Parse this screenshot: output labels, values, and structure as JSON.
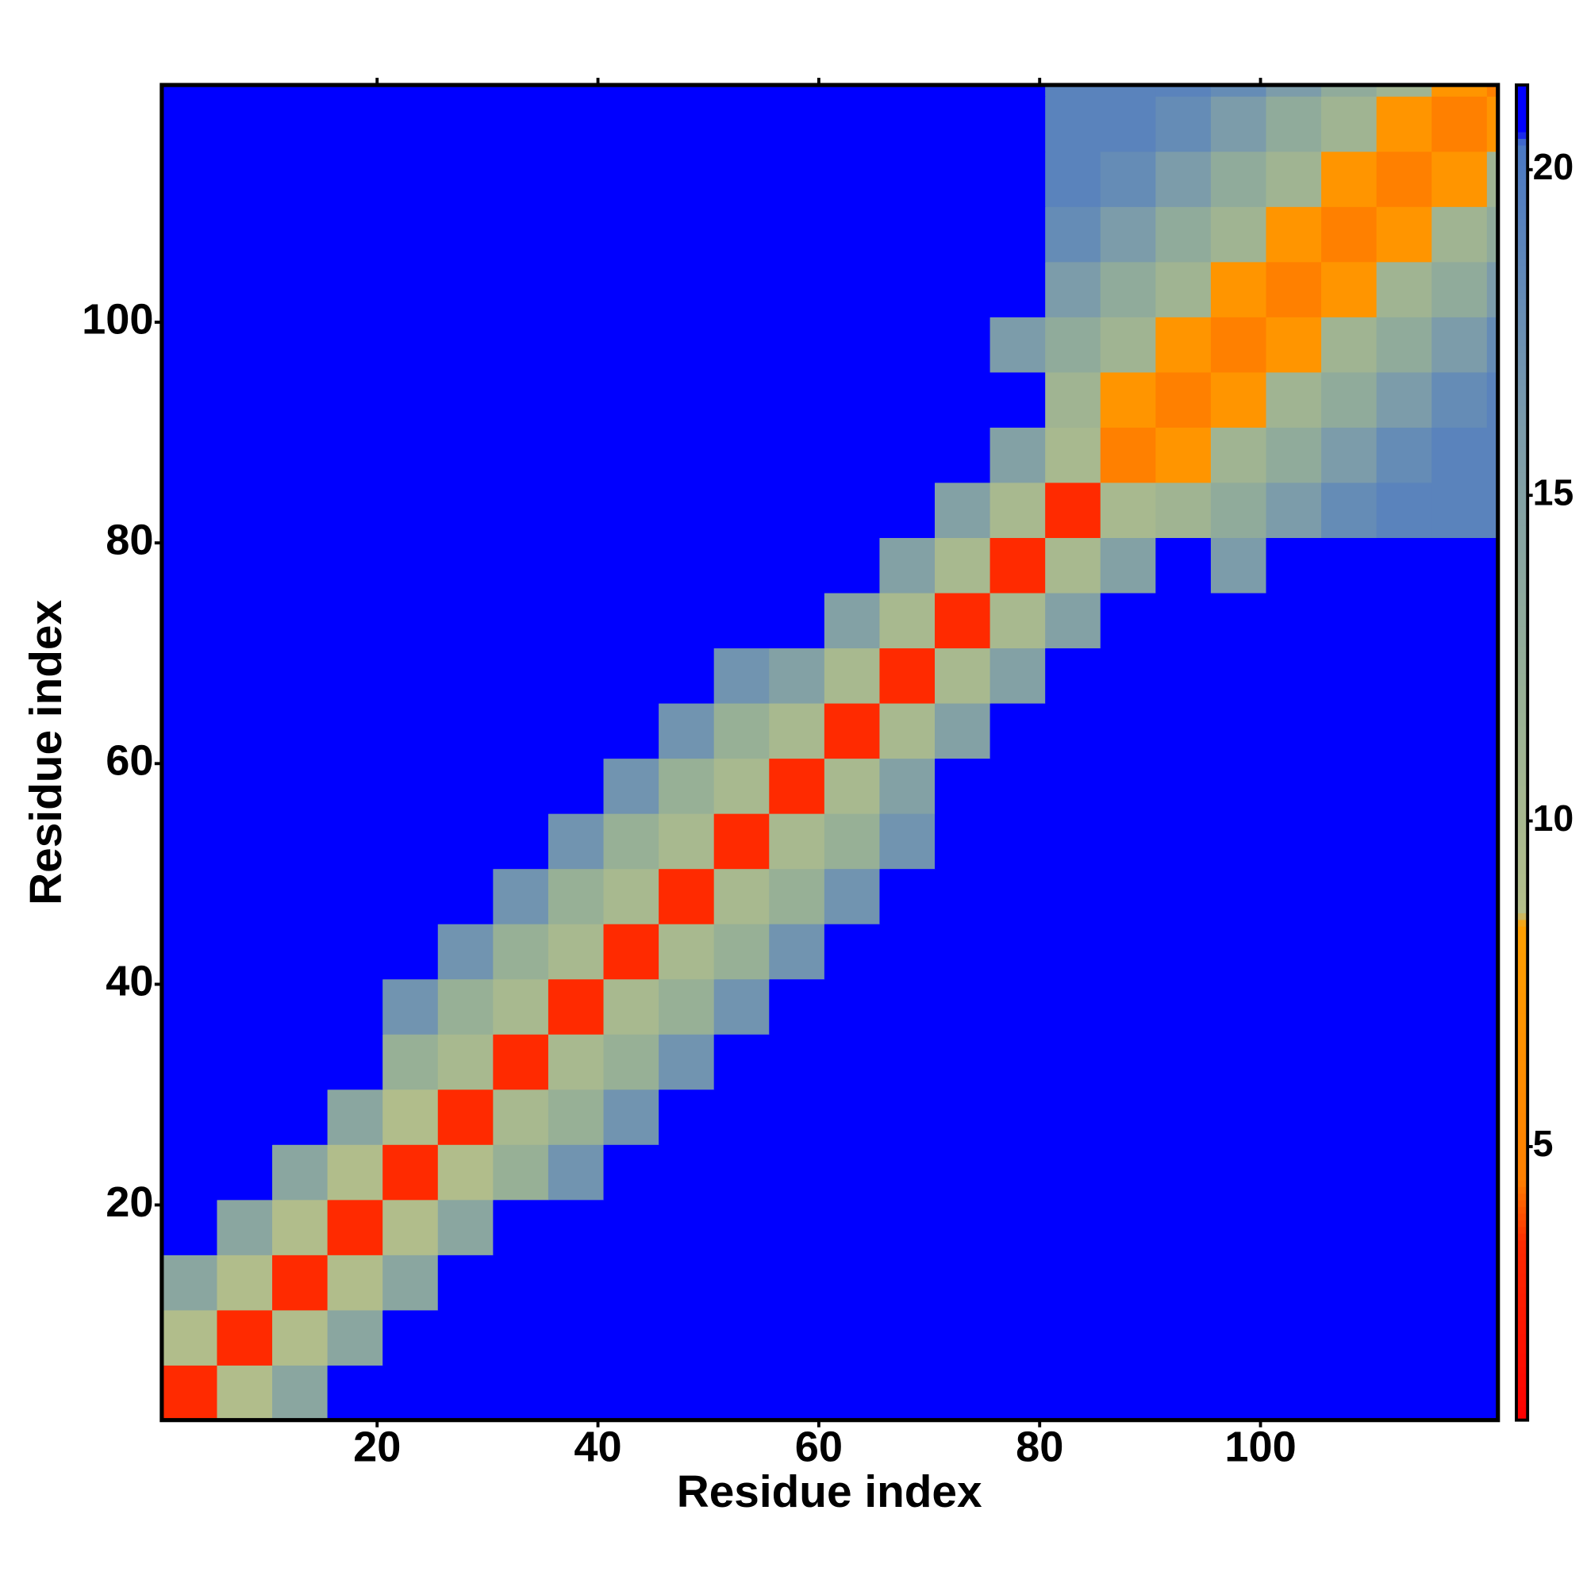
{
  "chart_data": {
    "type": "heatmap",
    "x_label": "Residue index",
    "y_label": "Residue index",
    "xlim": [
      0.5,
      121.5
    ],
    "ylim": [
      0.5,
      121.5
    ],
    "xticks": [
      20,
      40,
      60,
      80,
      100
    ],
    "yticks": [
      20,
      40,
      60,
      80,
      100
    ],
    "xbins": [
      0.5,
      5.5,
      10.5,
      15.5,
      20.5,
      25.5,
      30.5,
      35.5,
      40.5,
      45.5,
      50.5,
      55.5,
      60.5,
      65.5,
      70.5,
      75.5,
      80.5,
      85.5,
      90.5,
      95.5,
      100.5,
      105.5,
      110.5,
      115.5,
      120.5,
      121.5
    ],
    "ybins": [
      0.5,
      5.5,
      10.5,
      15.5,
      20.5,
      25.5,
      30.5,
      35.5,
      40.5,
      45.5,
      50.5,
      55.5,
      60.5,
      65.5,
      70.5,
      75.5,
      80.5,
      85.5,
      90.5,
      95.5,
      100.5,
      105.5,
      110.5,
      115.5,
      120.5,
      121.5
    ],
    "zlim": [
      0.8,
      21.3
    ],
    "zticks": [
      5,
      10,
      15,
      20
    ],
    "colorscale": [
      [
        0.8,
        "#ff0000"
      ],
      [
        3.5,
        "#ff2a00"
      ],
      [
        4.5,
        "#ff8000"
      ],
      [
        8.4,
        "#ffa000"
      ],
      [
        8.6,
        "#b4bf8a"
      ],
      [
        12,
        "#97b096"
      ],
      [
        16,
        "#7c9caa"
      ],
      [
        20.4,
        "#4a78c4"
      ],
      [
        20.6,
        "#0000ff"
      ],
      [
        21.3,
        "#0000ff"
      ]
    ],
    "z": [
      [
        3.5,
        9,
        14,
        21,
        21,
        21,
        21,
        21,
        21,
        21,
        21,
        21,
        21,
        21,
        21,
        21,
        21,
        21,
        21,
        21,
        21,
        21,
        21,
        21,
        21
      ],
      [
        9,
        3.5,
        9,
        14,
        21,
        21,
        21,
        21,
        21,
        21,
        21,
        21,
        21,
        21,
        21,
        21,
        21,
        21,
        21,
        21,
        21,
        21,
        21,
        21,
        21
      ],
      [
        14,
        9,
        3.5,
        9,
        14,
        21,
        21,
        21,
        21,
        21,
        21,
        21,
        21,
        21,
        21,
        21,
        21,
        21,
        21,
        21,
        21,
        21,
        21,
        21,
        21
      ],
      [
        21,
        14,
        9,
        3.5,
        9,
        14,
        21,
        21,
        21,
        21,
        21,
        21,
        21,
        21,
        21,
        21,
        21,
        21,
        21,
        21,
        21,
        21,
        21,
        21,
        21
      ],
      [
        21,
        21,
        14,
        9,
        3.5,
        9,
        12,
        17,
        21,
        21,
        21,
        21,
        21,
        21,
        21,
        21,
        21,
        21,
        21,
        21,
        21,
        21,
        21,
        21,
        21
      ],
      [
        21,
        21,
        21,
        14,
        9,
        3.5,
        10,
        12,
        17,
        21,
        21,
        21,
        21,
        21,
        21,
        21,
        21,
        21,
        21,
        21,
        21,
        21,
        21,
        21,
        21
      ],
      [
        21,
        21,
        21,
        21,
        12,
        10,
        3.5,
        10,
        12,
        17,
        21,
        21,
        21,
        21,
        21,
        21,
        21,
        21,
        21,
        21,
        21,
        21,
        21,
        21,
        21
      ],
      [
        21,
        21,
        21,
        21,
        17,
        12,
        10,
        3.5,
        10,
        12,
        17,
        21,
        21,
        21,
        21,
        21,
        21,
        21,
        21,
        21,
        21,
        21,
        21,
        21,
        21
      ],
      [
        21,
        21,
        21,
        21,
        21,
        17,
        12,
        10,
        3.5,
        10,
        12,
        17,
        21,
        21,
        21,
        21,
        21,
        21,
        21,
        21,
        21,
        21,
        21,
        21,
        21
      ],
      [
        21,
        21,
        21,
        21,
        21,
        21,
        17,
        12,
        10,
        3.5,
        10,
        12,
        17,
        21,
        21,
        21,
        21,
        21,
        21,
        21,
        21,
        21,
        21,
        21,
        21
      ],
      [
        21,
        21,
        21,
        21,
        21,
        21,
        21,
        17,
        12,
        10,
        3.5,
        10,
        12,
        17,
        21,
        21,
        21,
        21,
        21,
        21,
        21,
        21,
        21,
        21,
        21
      ],
      [
        21,
        21,
        21,
        21,
        21,
        21,
        21,
        21,
        17,
        12,
        10,
        3.5,
        10,
        15,
        21,
        21,
        21,
        21,
        21,
        21,
        21,
        21,
        21,
        21,
        21
      ],
      [
        21,
        21,
        21,
        21,
        21,
        21,
        21,
        21,
        21,
        17,
        12,
        10,
        3.5,
        10,
        15,
        21,
        21,
        21,
        21,
        21,
        21,
        21,
        21,
        21,
        21
      ],
      [
        21,
        21,
        21,
        21,
        21,
        21,
        21,
        21,
        21,
        21,
        17,
        15,
        10,
        3.5,
        10,
        15,
        21,
        21,
        21,
        21,
        21,
        21,
        21,
        21,
        21
      ],
      [
        21,
        21,
        21,
        21,
        21,
        21,
        21,
        21,
        21,
        21,
        21,
        21,
        15,
        10,
        3.5,
        10,
        15,
        21,
        21,
        21,
        21,
        21,
        21,
        21,
        21
      ],
      [
        21,
        21,
        21,
        21,
        21,
        21,
        21,
        21,
        21,
        21,
        21,
        21,
        21,
        15,
        10,
        3.5,
        10,
        15,
        21,
        16,
        21,
        21,
        21,
        21,
        21
      ],
      [
        21,
        21,
        21,
        21,
        21,
        21,
        21,
        21,
        21,
        21,
        21,
        21,
        21,
        21,
        15,
        10,
        3.5,
        10,
        11,
        13,
        16,
        18,
        19,
        19,
        19
      ],
      [
        21,
        21,
        21,
        21,
        21,
        21,
        21,
        21,
        21,
        21,
        21,
        21,
        21,
        21,
        21,
        15,
        10,
        4.5,
        7,
        11,
        13,
        16,
        18,
        19,
        19
      ],
      [
        21,
        21,
        21,
        21,
        21,
        21,
        21,
        21,
        21,
        21,
        21,
        21,
        21,
        21,
        21,
        21,
        11,
        7,
        4.5,
        7,
        11,
        13,
        16,
        18,
        19
      ],
      [
        21,
        21,
        21,
        21,
        21,
        21,
        21,
        21,
        21,
        21,
        21,
        21,
        21,
        21,
        21,
        16,
        13,
        11,
        7,
        4.5,
        7,
        11,
        13,
        16,
        18
      ],
      [
        21,
        21,
        21,
        21,
        21,
        21,
        21,
        21,
        21,
        21,
        21,
        21,
        21,
        21,
        21,
        21,
        16,
        13,
        11,
        7,
        4.5,
        7,
        11,
        13,
        16
      ],
      [
        21,
        21,
        21,
        21,
        21,
        21,
        21,
        21,
        21,
        21,
        21,
        21,
        21,
        21,
        21,
        21,
        18,
        16,
        13,
        11,
        7,
        4.5,
        7,
        11,
        13
      ],
      [
        21,
        21,
        21,
        21,
        21,
        21,
        21,
        21,
        21,
        21,
        21,
        21,
        21,
        21,
        21,
        21,
        19,
        18,
        16,
        13,
        11,
        7,
        4.5,
        7,
        11
      ],
      [
        21,
        21,
        21,
        21,
        21,
        21,
        21,
        21,
        21,
        21,
        21,
        21,
        21,
        21,
        21,
        21,
        19,
        19,
        18,
        16,
        13,
        11,
        7,
        4.5,
        7
      ],
      [
        21,
        21,
        21,
        21,
        21,
        21,
        21,
        21,
        21,
        21,
        21,
        21,
        21,
        21,
        21,
        21,
        19,
        19,
        19,
        18,
        16,
        13,
        11,
        7,
        4.5
      ]
    ]
  }
}
